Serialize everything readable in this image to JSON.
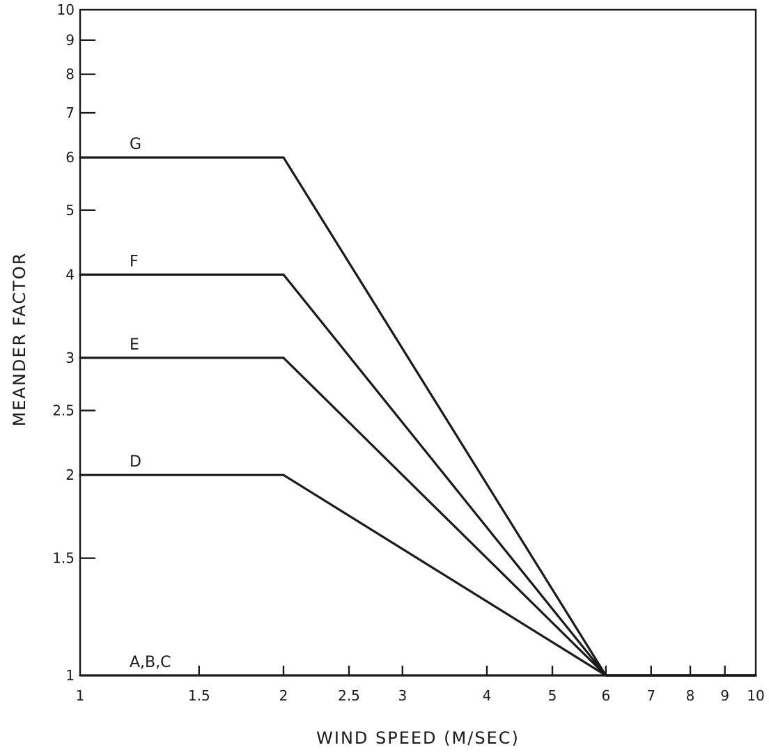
{
  "chart_data": {
    "type": "line",
    "title": "",
    "xlabel": "WIND SPEED (M/SEC)",
    "ylabel": "MEANDER FACTOR",
    "x_scale": "log",
    "y_scale": "log",
    "xlim": [
      1,
      10
    ],
    "ylim": [
      1,
      10
    ],
    "grid": false,
    "x_ticks": [
      {
        "value": 1,
        "label": "1"
      },
      {
        "value": 1.5,
        "label": "1.5"
      },
      {
        "value": 2,
        "label": "2"
      },
      {
        "value": 2.5,
        "label": "2.5"
      },
      {
        "value": 3,
        "label": "3"
      },
      {
        "value": 4,
        "label": "4"
      },
      {
        "value": 5,
        "label": "5"
      },
      {
        "value": 6,
        "label": "6"
      },
      {
        "value": 7,
        "label": "7"
      },
      {
        "value": 8,
        "label": "8"
      },
      {
        "value": 9,
        "label": "9"
      },
      {
        "value": 10,
        "label": "10"
      }
    ],
    "y_ticks": [
      {
        "value": 1,
        "label": "1"
      },
      {
        "value": 1.5,
        "label": "1.5"
      },
      {
        "value": 2,
        "label": "2"
      },
      {
        "value": 2.5,
        "label": "2.5"
      },
      {
        "value": 3,
        "label": "3"
      },
      {
        "value": 4,
        "label": "4"
      },
      {
        "value": 5,
        "label": "5"
      },
      {
        "value": 6,
        "label": "6"
      },
      {
        "value": 7,
        "label": "7"
      },
      {
        "value": 8,
        "label": "8"
      },
      {
        "value": 9,
        "label": "9"
      },
      {
        "value": 10,
        "label": "10"
      }
    ],
    "series": [
      {
        "name": "G",
        "x": [
          1,
          2,
          6,
          10
        ],
        "y": [
          6,
          6,
          1,
          1
        ]
      },
      {
        "name": "F",
        "x": [
          1,
          2,
          6,
          10
        ],
        "y": [
          4,
          4,
          1,
          1
        ]
      },
      {
        "name": "E",
        "x": [
          1,
          2,
          6,
          10
        ],
        "y": [
          3,
          3,
          1,
          1
        ]
      },
      {
        "name": "D",
        "x": [
          1,
          2,
          6,
          10
        ],
        "y": [
          2,
          2,
          1,
          1
        ]
      },
      {
        "name": "A,B,C",
        "x": [
          1,
          10
        ],
        "y": [
          1,
          1
        ]
      }
    ],
    "line_color": "#1a1a1a"
  }
}
